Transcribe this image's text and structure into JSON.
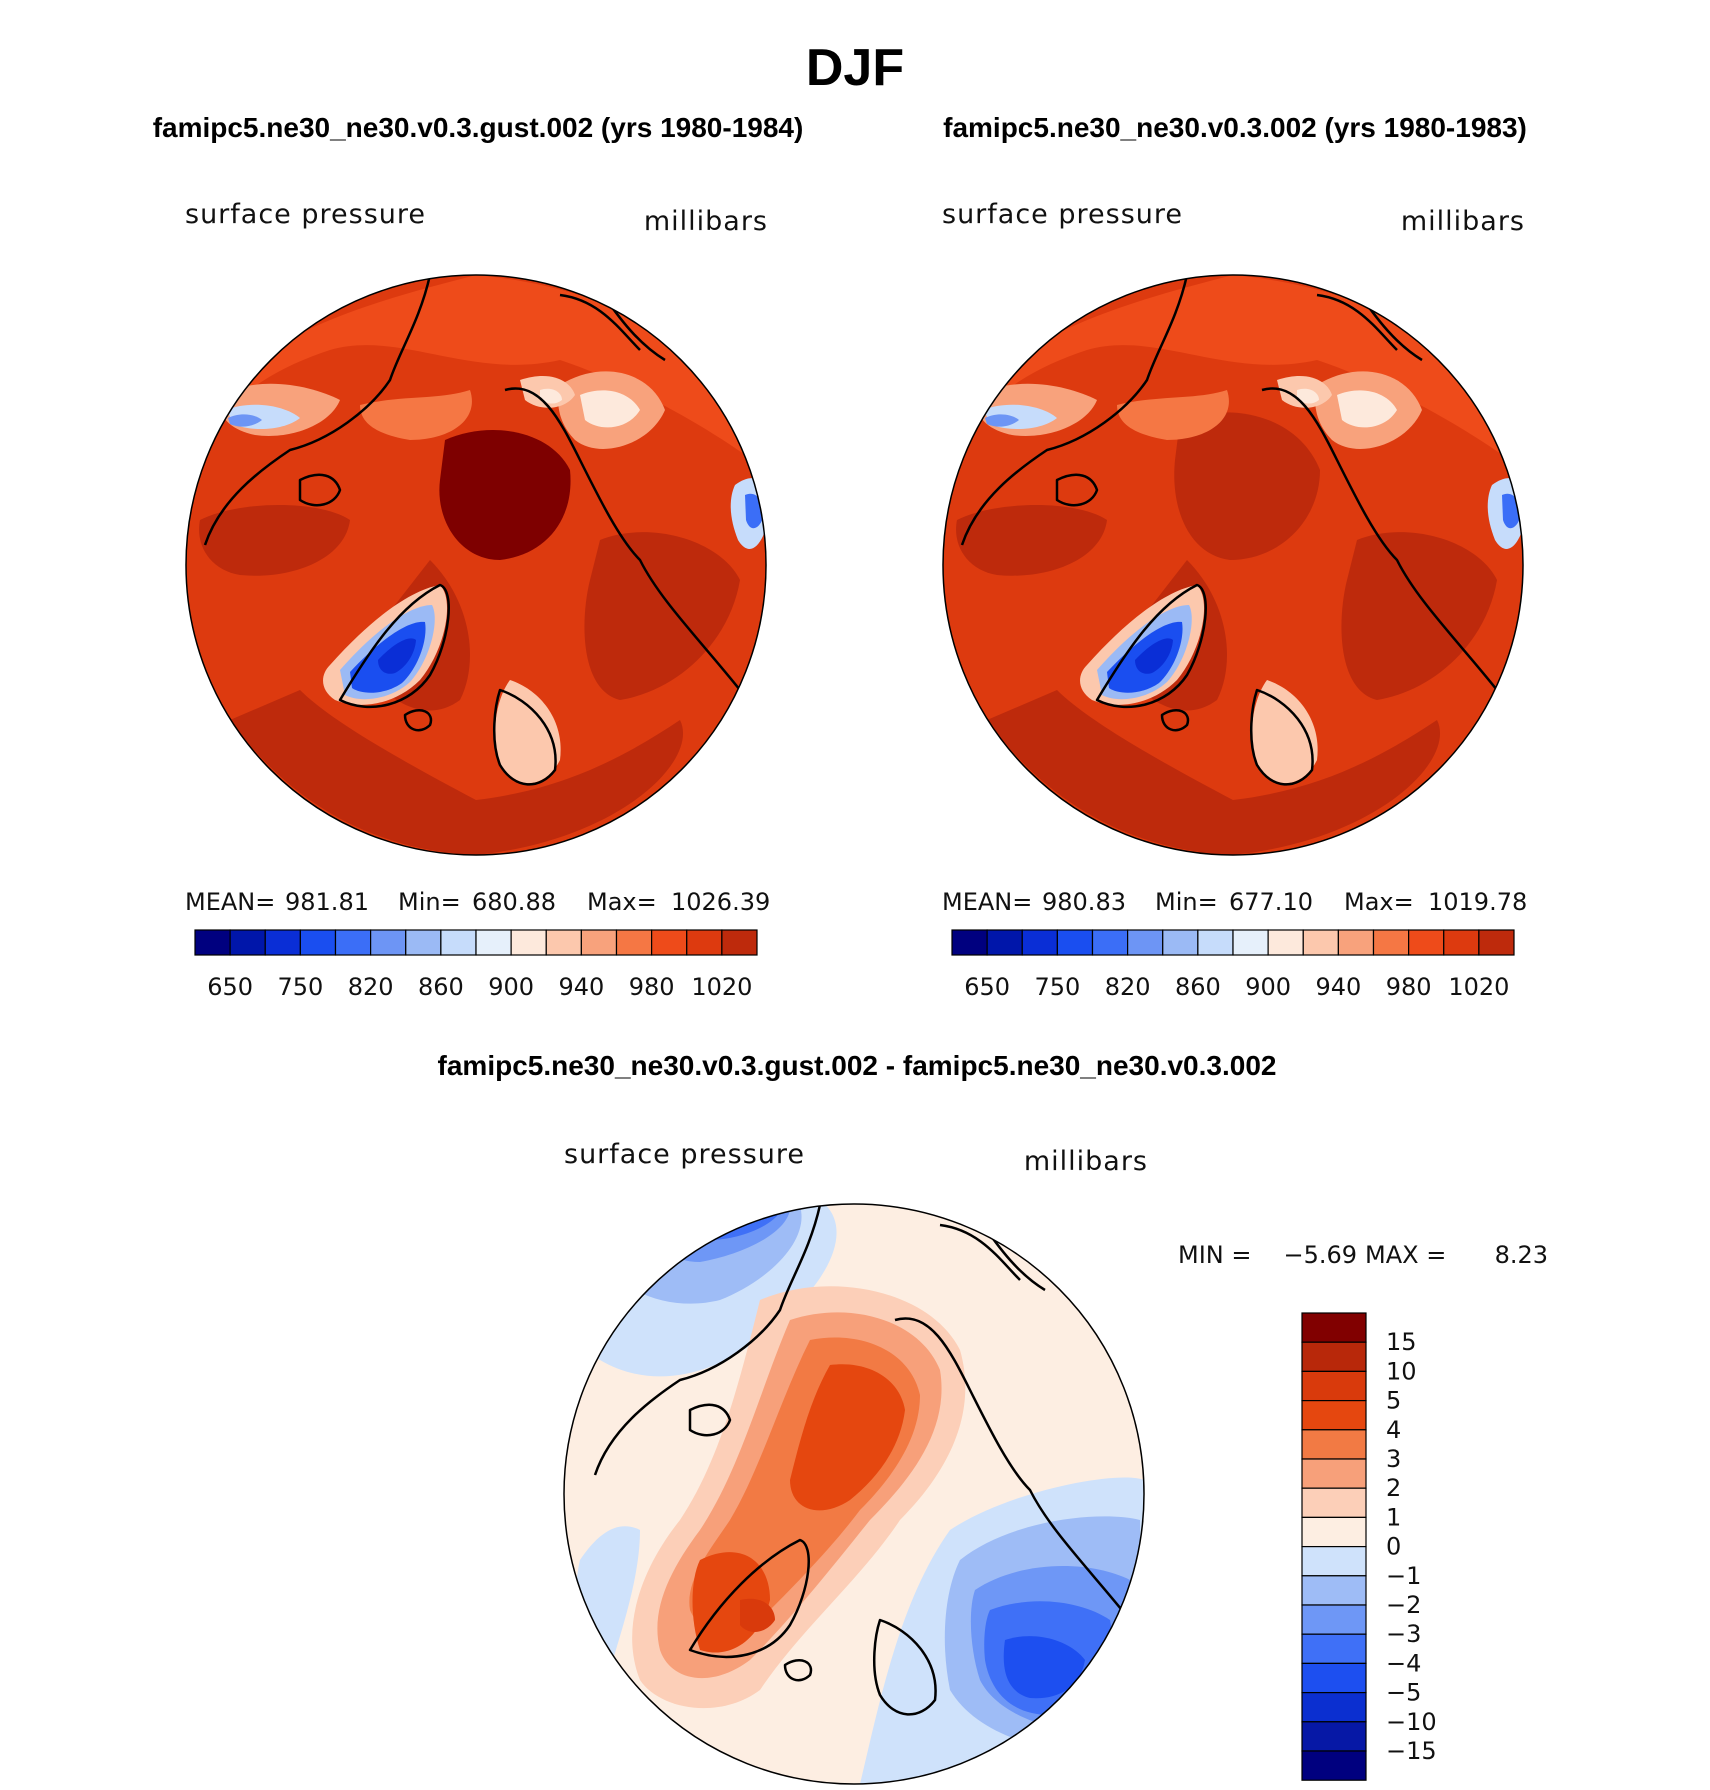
{
  "figure": {
    "title": "DJF",
    "bottom_title": "famipc5.ne30_ne30.v0.3.gust.002 - famipc5.ne30_ne30.v0.3.002"
  },
  "colors": {
    "abs_levels": [
      "#00007f",
      "#0016aa",
      "#0a2ed6",
      "#1a4ef0",
      "#3b6ef7",
      "#6d95f5",
      "#9bbaf5",
      "#c6dcfb",
      "#e6f0fb",
      "#fde9dc",
      "#fcc8ad",
      "#f8a27c",
      "#f57744",
      "#ee4b1a",
      "#dd3a0f",
      "#be2a0c",
      "#7e0000"
    ],
    "diff_levels": [
      "#00007f",
      "#0618a6",
      "#0b2fd0",
      "#1d4ff0",
      "#3f70f7",
      "#6e97f6",
      "#9ebcf6",
      "#cfe2fb",
      "#fdeee2",
      "#fccfb8",
      "#f7a07a",
      "#f27a44",
      "#e5470f",
      "#d93a0c",
      "#b8280a",
      "#810000"
    ]
  },
  "chart_data": [
    {
      "type": "heatmap",
      "projection": "north-polar-stereographic",
      "title": "famipc5.ne30_ne30.v0.3.gust.002 (yrs 1980-1984)",
      "left_label": "surface pressure",
      "right_label": "millibars",
      "stats": {
        "mean_label": "MEAN=",
        "mean": "981.81",
        "min_label": "Min=",
        "min": "680.88",
        "max_label": "Max=",
        "max": "1026.39"
      },
      "colorbar_ticks": [
        "650",
        "750",
        "820",
        "860",
        "900",
        "940",
        "980",
        "1020"
      ],
      "n_colors": 16
    },
    {
      "type": "heatmap",
      "projection": "north-polar-stereographic",
      "title": "famipc5.ne30_ne30.v0.3.002 (yrs 1980-1983)",
      "left_label": "surface pressure",
      "right_label": "millibars",
      "stats": {
        "mean_label": "MEAN=",
        "mean": "980.83",
        "min_label": "Min=",
        "min": "677.10",
        "max_label": "Max=",
        "max": "1019.78"
      },
      "colorbar_ticks": [
        "650",
        "750",
        "820",
        "860",
        "900",
        "940",
        "980",
        "1020"
      ],
      "n_colors": 16
    },
    {
      "type": "heatmap",
      "projection": "north-polar-stereographic",
      "title": "famipc5.ne30_ne30.v0.3.gust.002 - famipc5.ne30_ne30.v0.3.002",
      "left_label": "surface pressure",
      "right_label": "millibars",
      "stats": {
        "min_label": "MIN =",
        "min": "−5.69",
        "max_label": "MAX =",
        "max": "8.23"
      },
      "colorbar_ticks": [
        "15",
        "10",
        "5",
        "4",
        "3",
        "2",
        "1",
        "0",
        "−1",
        "−2",
        "−3",
        "−4",
        "−5",
        "−10",
        "−15"
      ],
      "n_colors": 16
    }
  ]
}
